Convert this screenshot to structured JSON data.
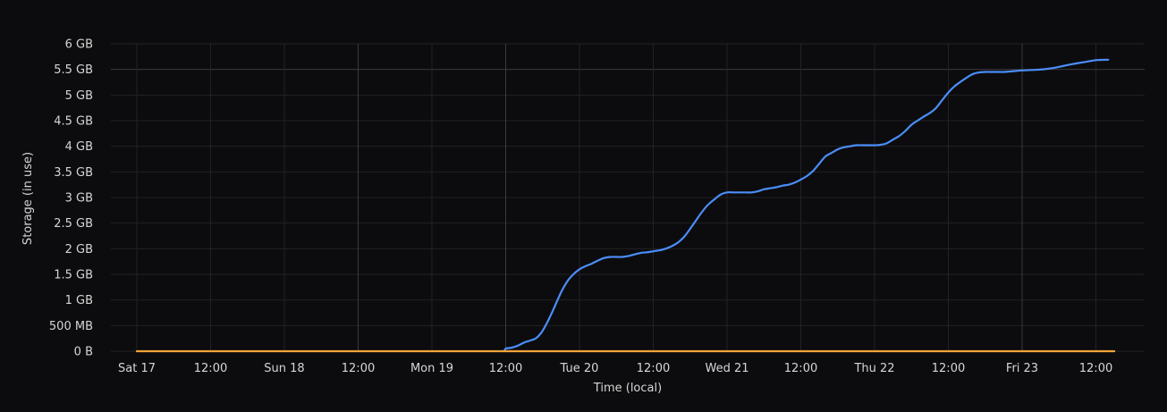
{
  "chart_data": {
    "type": "line",
    "title": "",
    "xlabel": "Time (local)",
    "ylabel": "Storage (in use)",
    "y_unit": "GB",
    "ylim": [
      0,
      6
    ],
    "y_ticks": [
      {
        "value": 0,
        "label": "0 B"
      },
      {
        "value": 0.5,
        "label": "500 MB"
      },
      {
        "value": 1,
        "label": "1 GB"
      },
      {
        "value": 1.5,
        "label": "1.5 GB"
      },
      {
        "value": 2,
        "label": "2 GB"
      },
      {
        "value": 2.5,
        "label": "2.5 GB"
      },
      {
        "value": 3,
        "label": "3 GB"
      },
      {
        "value": 3.5,
        "label": "3.5 GB"
      },
      {
        "value": 4,
        "label": "4 GB"
      },
      {
        "value": 4.5,
        "label": "4.5 GB"
      },
      {
        "value": 5,
        "label": "5 GB"
      },
      {
        "value": 5.5,
        "label": "5.5 GB"
      },
      {
        "value": 6,
        "label": "6 GB"
      }
    ],
    "xlim": [
      "Sat 17 00:00",
      "Fri 23 15:00"
    ],
    "x_ticks": [
      {
        "time": "Sat 17 00:00",
        "label": "Sat 17",
        "major": false
      },
      {
        "time": "Sat 17 12:00",
        "label": "12:00",
        "major": false
      },
      {
        "time": "Sun 18 00:00",
        "label": "Sun 18",
        "major": false
      },
      {
        "time": "Sun 18 12:00",
        "label": "12:00",
        "major": true
      },
      {
        "time": "Mon 19 00:00",
        "label": "Mon 19",
        "major": false
      },
      {
        "time": "Mon 19 12:00",
        "label": "12:00",
        "major": true
      },
      {
        "time": "Tue 20 00:00",
        "label": "Tue 20",
        "major": false
      },
      {
        "time": "Tue 20 12:00",
        "label": "12:00",
        "major": false
      },
      {
        "time": "Wed 21 00:00",
        "label": "Wed 21",
        "major": false
      },
      {
        "time": "Wed 21 12:00",
        "label": "12:00",
        "major": false
      },
      {
        "time": "Thu 22 00:00",
        "label": "Thu 22",
        "major": false
      },
      {
        "time": "Thu 22 12:00",
        "label": "12:00",
        "major": false
      },
      {
        "time": "Fri 23 00:00",
        "label": "Fri 23",
        "major": true
      },
      {
        "time": "Fri 23 12:00",
        "label": "12:00",
        "major": false
      }
    ],
    "grid": true,
    "legend": "none",
    "series": [
      {
        "color": "#4b8df8",
        "points": [
          [
            "Mon 19 11:50",
            0
          ],
          [
            "Mon 19 12:00",
            0.05
          ],
          [
            "Mon 19 13:00",
            0.07
          ],
          [
            "Mon 19 14:00",
            0.11
          ],
          [
            "Mon 19 15:00",
            0.17
          ],
          [
            "Mon 19 16:00",
            0.21
          ],
          [
            "Mon 19 17:00",
            0.26
          ],
          [
            "Mon 19 18:00",
            0.4
          ],
          [
            "Mon 19 19:00",
            0.62
          ],
          [
            "Mon 19 20:00",
            0.88
          ],
          [
            "Mon 19 21:00",
            1.15
          ],
          [
            "Mon 19 22:00",
            1.36
          ],
          [
            "Mon 19 23:00",
            1.5
          ],
          [
            "Tue 20 00:00",
            1.6
          ],
          [
            "Tue 20 01:00",
            1.66
          ],
          [
            "Tue 20 02:00",
            1.71
          ],
          [
            "Tue 20 03:00",
            1.77
          ],
          [
            "Tue 20 04:00",
            1.82
          ],
          [
            "Tue 20 05:00",
            1.84
          ],
          [
            "Tue 20 06:00",
            1.84
          ],
          [
            "Tue 20 07:00",
            1.84
          ],
          [
            "Tue 20 08:00",
            1.86
          ],
          [
            "Tue 20 09:00",
            1.89
          ],
          [
            "Tue 20 10:00",
            1.92
          ],
          [
            "Tue 20 11:00",
            1.93
          ],
          [
            "Tue 20 12:00",
            1.95
          ],
          [
            "Tue 20 13:00",
            1.97
          ],
          [
            "Tue 20 14:00",
            2.0
          ],
          [
            "Tue 20 15:00",
            2.05
          ],
          [
            "Tue 20 16:00",
            2.12
          ],
          [
            "Tue 20 17:00",
            2.23
          ],
          [
            "Tue 20 18:00",
            2.39
          ],
          [
            "Tue 20 19:00",
            2.56
          ],
          [
            "Tue 20 20:00",
            2.73
          ],
          [
            "Tue 20 21:00",
            2.87
          ],
          [
            "Tue 20 22:00",
            2.97
          ],
          [
            "Tue 20 23:00",
            3.06
          ],
          [
            "Wed 21 00:00",
            3.1
          ],
          [
            "Wed 21 01:00",
            3.1
          ],
          [
            "Wed 21 02:00",
            3.1
          ],
          [
            "Wed 21 03:00",
            3.1
          ],
          [
            "Wed 21 04:00",
            3.1
          ],
          [
            "Wed 21 05:00",
            3.12
          ],
          [
            "Wed 21 06:00",
            3.16
          ],
          [
            "Wed 21 07:00",
            3.18
          ],
          [
            "Wed 21 08:00",
            3.2
          ],
          [
            "Wed 21 09:00",
            3.23
          ],
          [
            "Wed 21 10:00",
            3.25
          ],
          [
            "Wed 21 11:00",
            3.29
          ],
          [
            "Wed 21 12:00",
            3.35
          ],
          [
            "Wed 21 13:00",
            3.42
          ],
          [
            "Wed 21 14:00",
            3.52
          ],
          [
            "Wed 21 15:00",
            3.66
          ],
          [
            "Wed 21 16:00",
            3.8
          ],
          [
            "Wed 21 17:00",
            3.87
          ],
          [
            "Wed 21 18:00",
            3.94
          ],
          [
            "Wed 21 19:00",
            3.98
          ],
          [
            "Wed 21 20:00",
            4.0
          ],
          [
            "Wed 21 21:00",
            4.02
          ],
          [
            "Wed 21 22:00",
            4.02
          ],
          [
            "Wed 21 23:00",
            4.02
          ],
          [
            "Thu 22 00:00",
            4.02
          ],
          [
            "Thu 22 01:00",
            4.03
          ],
          [
            "Thu 22 02:00",
            4.06
          ],
          [
            "Thu 22 03:00",
            4.13
          ],
          [
            "Thu 22 04:00",
            4.2
          ],
          [
            "Thu 22 05:00",
            4.3
          ],
          [
            "Thu 22 06:00",
            4.42
          ],
          [
            "Thu 22 07:00",
            4.5
          ],
          [
            "Thu 22 08:00",
            4.58
          ],
          [
            "Thu 22 09:00",
            4.65
          ],
          [
            "Thu 22 10:00",
            4.75
          ],
          [
            "Thu 22 11:00",
            4.9
          ],
          [
            "Thu 22 12:00",
            5.05
          ],
          [
            "Thu 22 13:00",
            5.17
          ],
          [
            "Thu 22 14:00",
            5.26
          ],
          [
            "Thu 22 15:00",
            5.34
          ],
          [
            "Thu 22 16:00",
            5.41
          ],
          [
            "Thu 22 17:00",
            5.44
          ],
          [
            "Thu 22 18:00",
            5.45
          ],
          [
            "Thu 22 19:00",
            5.45
          ],
          [
            "Thu 22 20:00",
            5.45
          ],
          [
            "Thu 22 21:00",
            5.45
          ],
          [
            "Thu 22 22:00",
            5.46
          ],
          [
            "Thu 22 23:00",
            5.47
          ],
          [
            "Fri 23 00:00",
            5.48
          ],
          [
            "Fri 23 02:00",
            5.49
          ],
          [
            "Fri 23 04:00",
            5.51
          ],
          [
            "Fri 23 06:00",
            5.55
          ],
          [
            "Fri 23 08:00",
            5.6
          ],
          [
            "Fri 23 10:00",
            5.64
          ],
          [
            "Fri 23 12:00",
            5.68
          ],
          [
            "Fri 23 14:00",
            5.69
          ]
        ]
      },
      {
        "color": "#f5a43a",
        "points": [
          [
            "Sat 17 00:00",
            0
          ],
          [
            "Fri 23 15:00",
            0
          ]
        ]
      }
    ]
  }
}
